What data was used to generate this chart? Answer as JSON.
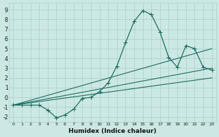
{
  "xlabel": "Humidex (Indice chaleur)",
  "bg_color": "#cce8e4",
  "grid_color": "#aaccc8",
  "line_color": "#1a6b5e",
  "xlim": [
    -0.5,
    23.5
  ],
  "ylim": [
    -2.5,
    9.7
  ],
  "xticks": [
    0,
    1,
    2,
    3,
    4,
    5,
    6,
    7,
    8,
    9,
    10,
    11,
    12,
    13,
    14,
    15,
    16,
    17,
    18,
    19,
    20,
    21,
    22,
    23
  ],
  "yticks": [
    -2,
    -1,
    0,
    1,
    2,
    3,
    4,
    5,
    6,
    7,
    8,
    9
  ],
  "curve_x": [
    0,
    1,
    2,
    3,
    4,
    5,
    6,
    7,
    8,
    9,
    10,
    11,
    12,
    13,
    14,
    15,
    16,
    17,
    18,
    19,
    20,
    21,
    22,
    23
  ],
  "curve_y": [
    -0.8,
    -0.8,
    -0.8,
    -0.8,
    -1.3,
    -2.1,
    -1.8,
    -1.2,
    -0.1,
    0.0,
    0.6,
    1.5,
    3.2,
    5.6,
    7.8,
    8.9,
    8.5,
    6.7,
    4.1,
    3.1,
    5.3,
    5.0,
    3.1,
    2.8
  ],
  "line1_x": [
    0,
    23
  ],
  "line1_y": [
    -0.8,
    2.0
  ],
  "line2_x": [
    0,
    23
  ],
  "line2_y": [
    -0.8,
    5.0
  ],
  "line3_x": [
    0,
    23
  ],
  "line3_y": [
    -0.8,
    3.0
  ]
}
